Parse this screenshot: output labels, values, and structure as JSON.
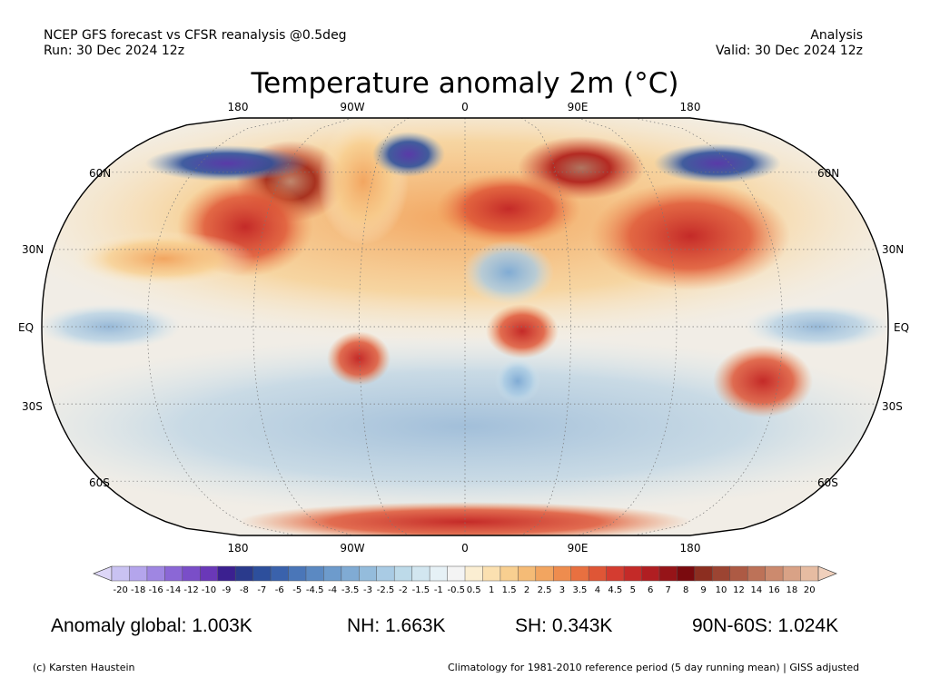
{
  "header": {
    "model_line": "NCEP GFS forecast vs CFSR reanalysis @0.5deg",
    "run_line": "Run: 30 Dec 2024 12z",
    "type_line": "Analysis",
    "valid_line": "Valid: 30 Dec 2024 12z"
  },
  "title": "Temperature anomaly 2m (°C)",
  "map": {
    "lon_labels": [
      "180",
      "90W",
      "0",
      "90E",
      "180"
    ],
    "lat_labels_left": [
      "60N",
      "30N",
      "EQ",
      "30S",
      "60S"
    ],
    "lat_labels_right": [
      "60N",
      "30N",
      "EQ",
      "30S",
      "60S"
    ]
  },
  "colorbar": {
    "labels": [
      "-20",
      "-18",
      "-16",
      "-14",
      "-12",
      "-10",
      "-9",
      "-8",
      "-7",
      "-6",
      "-5",
      "-4.5",
      "-4",
      "-3.5",
      "-3",
      "-2.5",
      "-2",
      "-1.5",
      "-1",
      "-0.5",
      "0.5",
      "1",
      "1.5",
      "2",
      "2.5",
      "3",
      "3.5",
      "4",
      "4.5",
      "5",
      "6",
      "7",
      "8",
      "9",
      "10",
      "12",
      "14",
      "16",
      "18",
      "20"
    ],
    "colors": [
      "#c9c2f2",
      "#b4a5ec",
      "#9f86e2",
      "#8b67d6",
      "#7a4ec8",
      "#6a38b8",
      "#3b2090",
      "#2a3a8c",
      "#2d4f9c",
      "#3a62ac",
      "#4a76b8",
      "#5b89c2",
      "#6d9bcc",
      "#80abd4",
      "#94bcdc",
      "#a9cbe4",
      "#bddae9",
      "#d2e6f0",
      "#e6f1f6",
      "#f4f4f4",
      "#fbeed2",
      "#fbe0b0",
      "#f8cf90",
      "#f5bb76",
      "#f2a560",
      "#ee8c4e",
      "#e87040",
      "#df5636",
      "#d43c30",
      "#c42a28",
      "#b01e22",
      "#961418",
      "#7a0a0e",
      "#8c2e20",
      "#9c4432",
      "#ad5a44",
      "#bd7258",
      "#cc8a6e",
      "#d9a286",
      "#e6bca2"
    ]
  },
  "stats": {
    "global": "Anomaly global: 1.003K",
    "nh": "NH: 1.663K",
    "sh": "SH: 0.343K",
    "arctic": "90N-60S: 1.024K"
  },
  "footer": {
    "credit": "(c) Karsten Haustein",
    "note": "Climatology for 1981-2010 reference period (5 day running mean) | GISS adjusted"
  }
}
